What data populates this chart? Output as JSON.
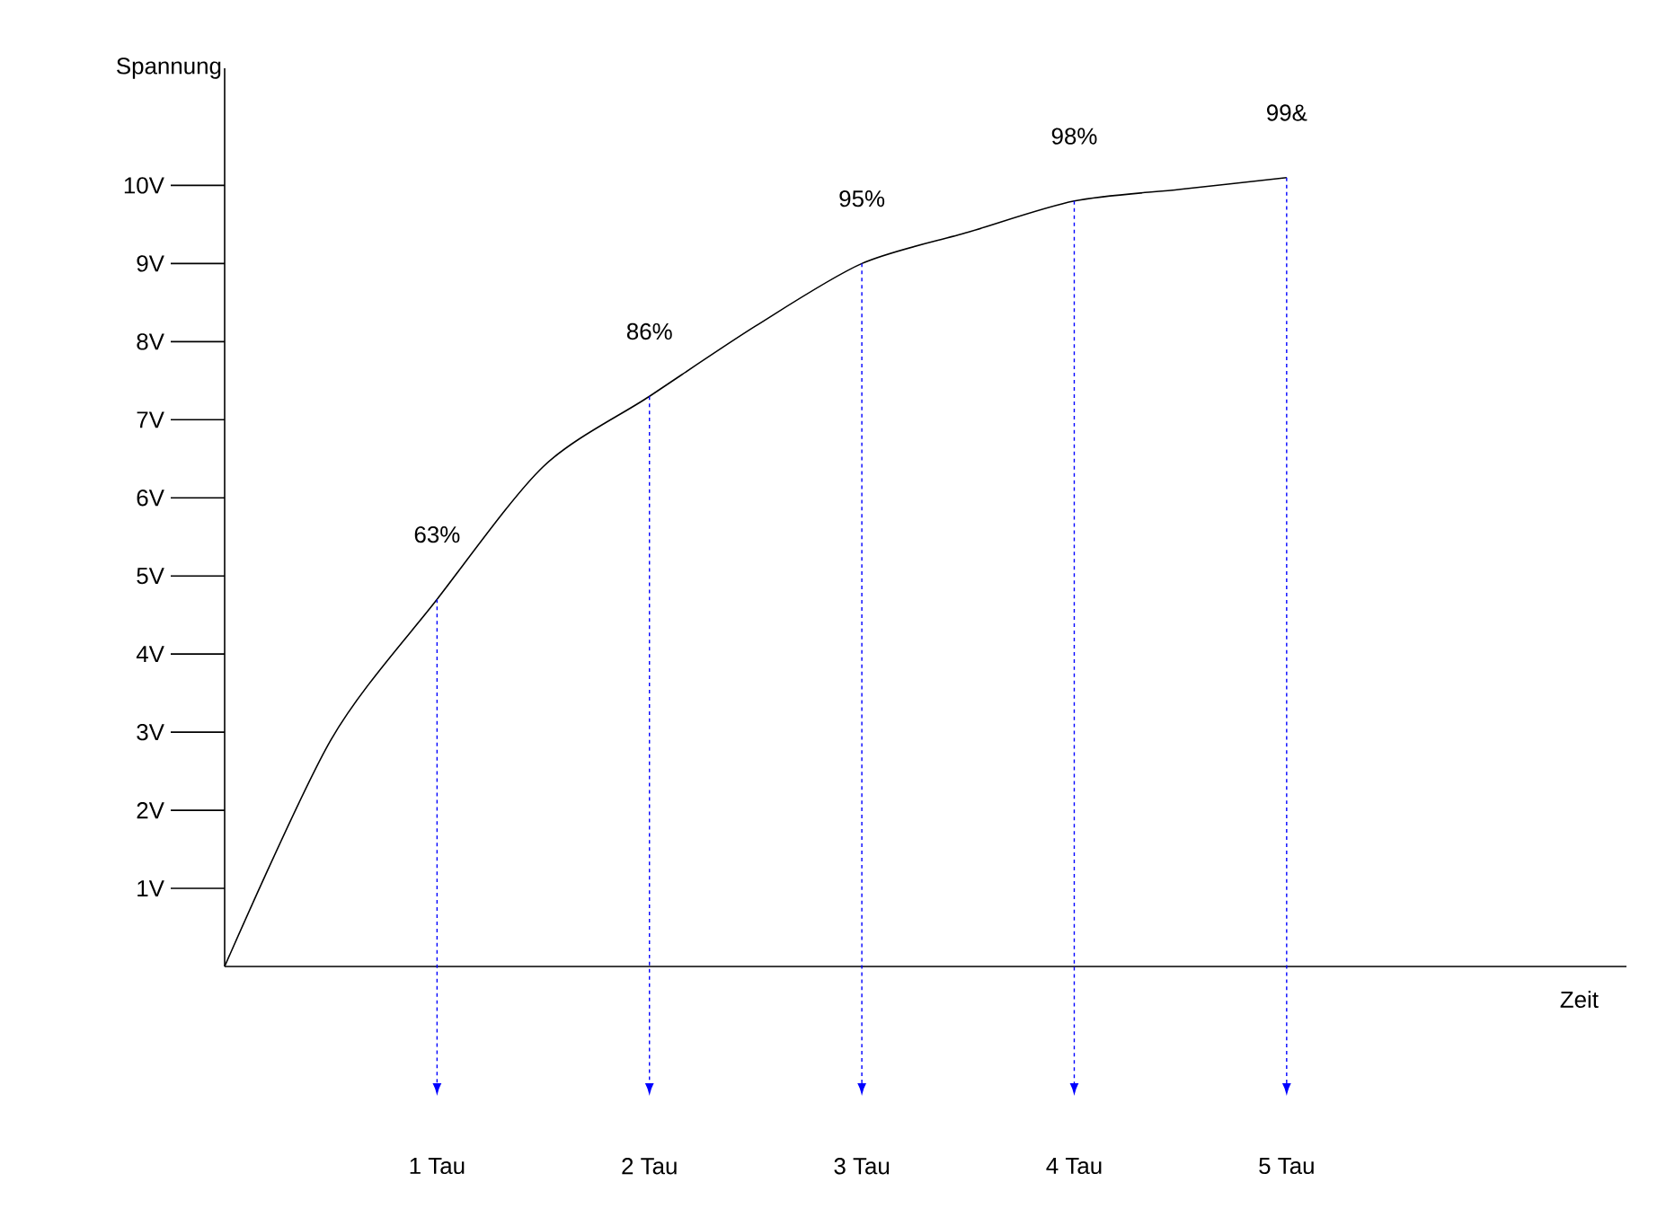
{
  "chart_data": {
    "type": "line",
    "xlabel": "Zeit",
    "ylabel": "Spannung",
    "xlim": [
      0,
      6.6
    ],
    "ylim": [
      0,
      11.5
    ],
    "xticks": [
      {
        "value": 1,
        "label": "1 Tau"
      },
      {
        "value": 2,
        "label": "2 Tau"
      },
      {
        "value": 3,
        "label": "3 Tau"
      },
      {
        "value": 4,
        "label": "4 Tau"
      },
      {
        "value": 5,
        "label": "5 Tau"
      }
    ],
    "yticks": [
      {
        "value": 1,
        "label": "1V"
      },
      {
        "value": 2,
        "label": "2V"
      },
      {
        "value": 3,
        "label": "3V"
      },
      {
        "value": 4,
        "label": "4V"
      },
      {
        "value": 5,
        "label": "5V"
      },
      {
        "value": 6,
        "label": "6V"
      },
      {
        "value": 7,
        "label": "7V"
      },
      {
        "value": 8,
        "label": "8V"
      },
      {
        "value": 9,
        "label": "9V"
      },
      {
        "value": 10,
        "label": "10V"
      }
    ],
    "x": [
      0,
      0.5,
      1,
      1.5,
      2,
      2.5,
      3,
      3.5,
      4,
      4.5,
      5
    ],
    "series": [
      {
        "color": "#000000",
        "values": [
          0,
          2.9,
          4.7,
          6.4,
          7.3,
          8.2,
          9.0,
          9.4,
          9.8,
          9.95,
          10.1
        ]
      }
    ],
    "ref_lines": [
      {
        "axis": "x",
        "value": 1,
        "color": "#0000ff",
        "line_style": "dotted"
      },
      {
        "axis": "x",
        "value": 2,
        "color": "#0000ff",
        "line_style": "dotted"
      },
      {
        "axis": "x",
        "value": 3,
        "color": "#0000ff",
        "line_style": "dotted"
      },
      {
        "axis": "x",
        "value": 4,
        "color": "#0000ff",
        "line_style": "dotted"
      },
      {
        "axis": "x",
        "value": 5,
        "color": "#0000ff",
        "line_style": "dotted"
      }
    ],
    "annotations": [
      {
        "text": "63%",
        "x": 1,
        "y": 4.7
      },
      {
        "text": "86%",
        "x": 2,
        "y": 7.3
      },
      {
        "text": "95%",
        "x": 3,
        "y": 9.0
      },
      {
        "text": "98%",
        "x": 4,
        "y": 9.8
      },
      {
        "text": "99&",
        "x": 5,
        "y": 10.1
      }
    ],
    "marker": "none",
    "line_style": "solid"
  }
}
